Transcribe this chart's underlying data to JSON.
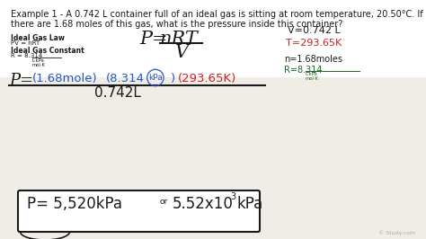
{
  "bg_top": "#ffffff",
  "bg_main": "#f5f4f0",
  "title_line1": "Example 1 - A 0.742 L container full of an ideal gas is sitting at room temperature, 20.50°C. If",
  "title_line2": "there are 1.68 moles of this gas, what is the pressure inside this container?",
  "ideal_gas_law": "Ideal Gas Law",
  "pv_nrt": "PV = nRT",
  "ideal_gas_constant": "Ideal Gas Constant",
  "r_eq": "R = 8.314",
  "color_dark": "#1a1a1a",
  "color_blue": "#2255cc",
  "color_red": "#cc2222",
  "color_green": "#226622",
  "color_bg_white": "#fafaf8",
  "color_bg_lower": "#e8e6e0",
  "watermark": "© Study.com"
}
